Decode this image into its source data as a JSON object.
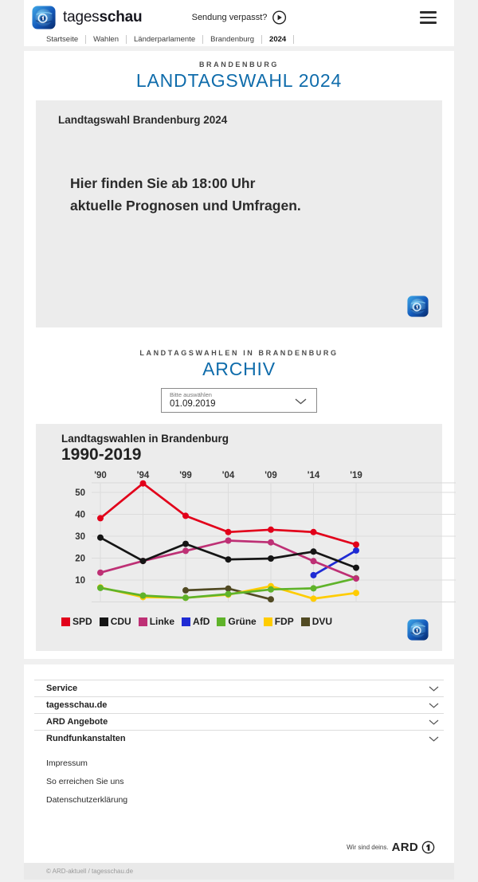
{
  "header": {
    "brand_prefix": "tages",
    "brand_suffix": "schau",
    "sendung_verpasst": "Sendung verpasst?",
    "breadcrumb": [
      "Startseite",
      "Wahlen",
      "Länderparlamente",
      "Brandenburg",
      "2024"
    ]
  },
  "hero": {
    "kicker": "BRANDENBURG",
    "title": "LANDTAGSWAHL 2024",
    "teaser_heading": "Landtagswahl Brandenburg 2024",
    "teaser_line1": "Hier finden Sie ab 18:00 Uhr",
    "teaser_line2": "aktuelle Prognosen und Umfragen."
  },
  "archive": {
    "kicker": "LANDTAGSWAHLEN IN BRANDENBURG",
    "title": "ARCHIV",
    "select_label": "Bitte auswählen",
    "select_value": "01.09.2019"
  },
  "chart_data": {
    "type": "line",
    "title": "Landtagswahlen in Brandenburg",
    "subtitle": "1990-2019",
    "unit": "percent",
    "x_tick_labels": [
      "'90",
      "'94",
      "'99",
      "'04",
      "'09",
      "'14",
      "'19"
    ],
    "years": [
      1990,
      1994,
      1999,
      2004,
      2009,
      2014,
      2019
    ],
    "y_ticks": [
      50,
      40,
      30,
      20,
      10
    ],
    "ylim": [
      0,
      55
    ],
    "grid": true,
    "legend_position": "bottom",
    "series": [
      {
        "name": "SPD",
        "color": "#e2001a",
        "values": [
          38.2,
          54.1,
          39.3,
          31.9,
          33.0,
          31.9,
          26.2
        ]
      },
      {
        "name": "CDU",
        "color": "#151515",
        "values": [
          29.4,
          18.7,
          26.5,
          19.4,
          19.8,
          23.0,
          15.6
        ]
      },
      {
        "name": "Linke",
        "color": "#be3075",
        "values": [
          13.4,
          18.7,
          23.3,
          28.0,
          27.2,
          18.6,
          10.7
        ]
      },
      {
        "name": "AfD",
        "color": "#1f2bd4",
        "values": [
          null,
          null,
          null,
          null,
          null,
          12.2,
          23.5
        ]
      },
      {
        "name": "Grüne",
        "color": "#5fb32a",
        "values": [
          6.4,
          2.9,
          1.9,
          3.6,
          5.7,
          6.2,
          10.8
        ]
      },
      {
        "name": "FDP",
        "color": "#ffcc00",
        "values": [
          6.6,
          2.2,
          1.9,
          3.3,
          7.2,
          1.5,
          4.1
        ]
      },
      {
        "name": "DVU",
        "color": "#514a23",
        "values": [
          null,
          null,
          5.3,
          6.1,
          1.2,
          null,
          null
        ]
      }
    ]
  },
  "footer": {
    "accordions": [
      "Service",
      "tagesschau.de",
      "ARD Angebote",
      "Rundfunkanstalten"
    ],
    "links": [
      "Impressum",
      "So erreichen Sie uns",
      "Datenschutzerklärung"
    ],
    "claim": "Wir sind deins.",
    "claim_brand": "ARD",
    "copyright": "© ARD-aktuell / tagesschau.de"
  },
  "colors": {
    "accent_blue": "#0f6cab",
    "page_bg": "#f0f0f0",
    "panel_bg": "#ececec",
    "grid_line": "#dcdcdc"
  }
}
